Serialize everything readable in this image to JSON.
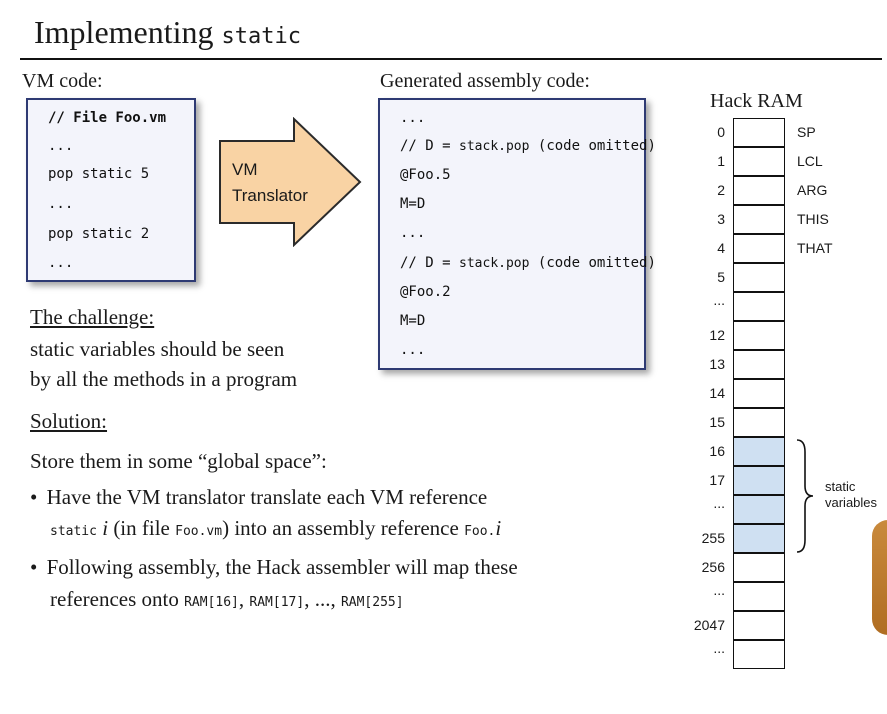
{
  "title": {
    "text": "Implementing",
    "keyword": "static"
  },
  "vm_code": {
    "caption": "VM code:",
    "lines": [
      "// File Foo.vm",
      "...",
      "pop static 5",
      "...",
      "pop static 2",
      "..."
    ]
  },
  "translator": {
    "line1": "VM",
    "line2": "Translator"
  },
  "asm_code": {
    "caption": "Generated assembly code:",
    "lines": [
      {
        "type": "code",
        "text": "..."
      },
      {
        "type": "comment",
        "prefix": "// D = ",
        "code": "stack.pop",
        "suffix": " (code omitted)"
      },
      {
        "type": "code",
        "text": "@Foo.5"
      },
      {
        "type": "code",
        "text": "M=D"
      },
      {
        "type": "code",
        "text": "..."
      },
      {
        "type": "comment",
        "prefix": "// D = ",
        "code": "stack.pop",
        "suffix": " (code omitted)"
      },
      {
        "type": "code",
        "text": "@Foo.2"
      },
      {
        "type": "code",
        "text": "M=D"
      },
      {
        "type": "code",
        "text": "..."
      }
    ]
  },
  "challenge": {
    "heading": "The challenge:",
    "line1": "static variables should be seen",
    "line2": "by all the methods in a program"
  },
  "solution": {
    "heading": "Solution:",
    "intro": "Store them in some “global space”:",
    "bullet1": {
      "line1": "Have the VM translator translate each VM reference",
      "line2_code1": "static",
      "line2_var": "i",
      "line2_text1": " (in file ",
      "line2_code2": "Foo.vm",
      "line2_text2": ") into an assembly reference ",
      "line2_code3": "Foo.",
      "line2_var2": "i"
    },
    "bullet2": {
      "line1": "Following assembly, the Hack assembler will map these",
      "line2_text": "references onto ",
      "line2_code1": "RAM[16]",
      "line2_sep1": ", ",
      "line2_code2": "RAM[17]",
      "line2_sep2": ", ..., ",
      "line2_code3": "RAM[255]"
    }
  },
  "ram": {
    "title": "Hack RAM",
    "addresses": [
      "0",
      "1",
      "2",
      "3",
      "4",
      "5",
      "...",
      "12",
      "13",
      "14",
      "15",
      "16",
      "17",
      "...",
      "255",
      "256",
      "...",
      "2047",
      "..."
    ],
    "registers": [
      "SP",
      "LCL",
      "ARG",
      "THIS",
      "THAT"
    ],
    "static_label_line1": "static",
    "static_label_line2": "variables",
    "static_fill": "#cfe0f2"
  }
}
